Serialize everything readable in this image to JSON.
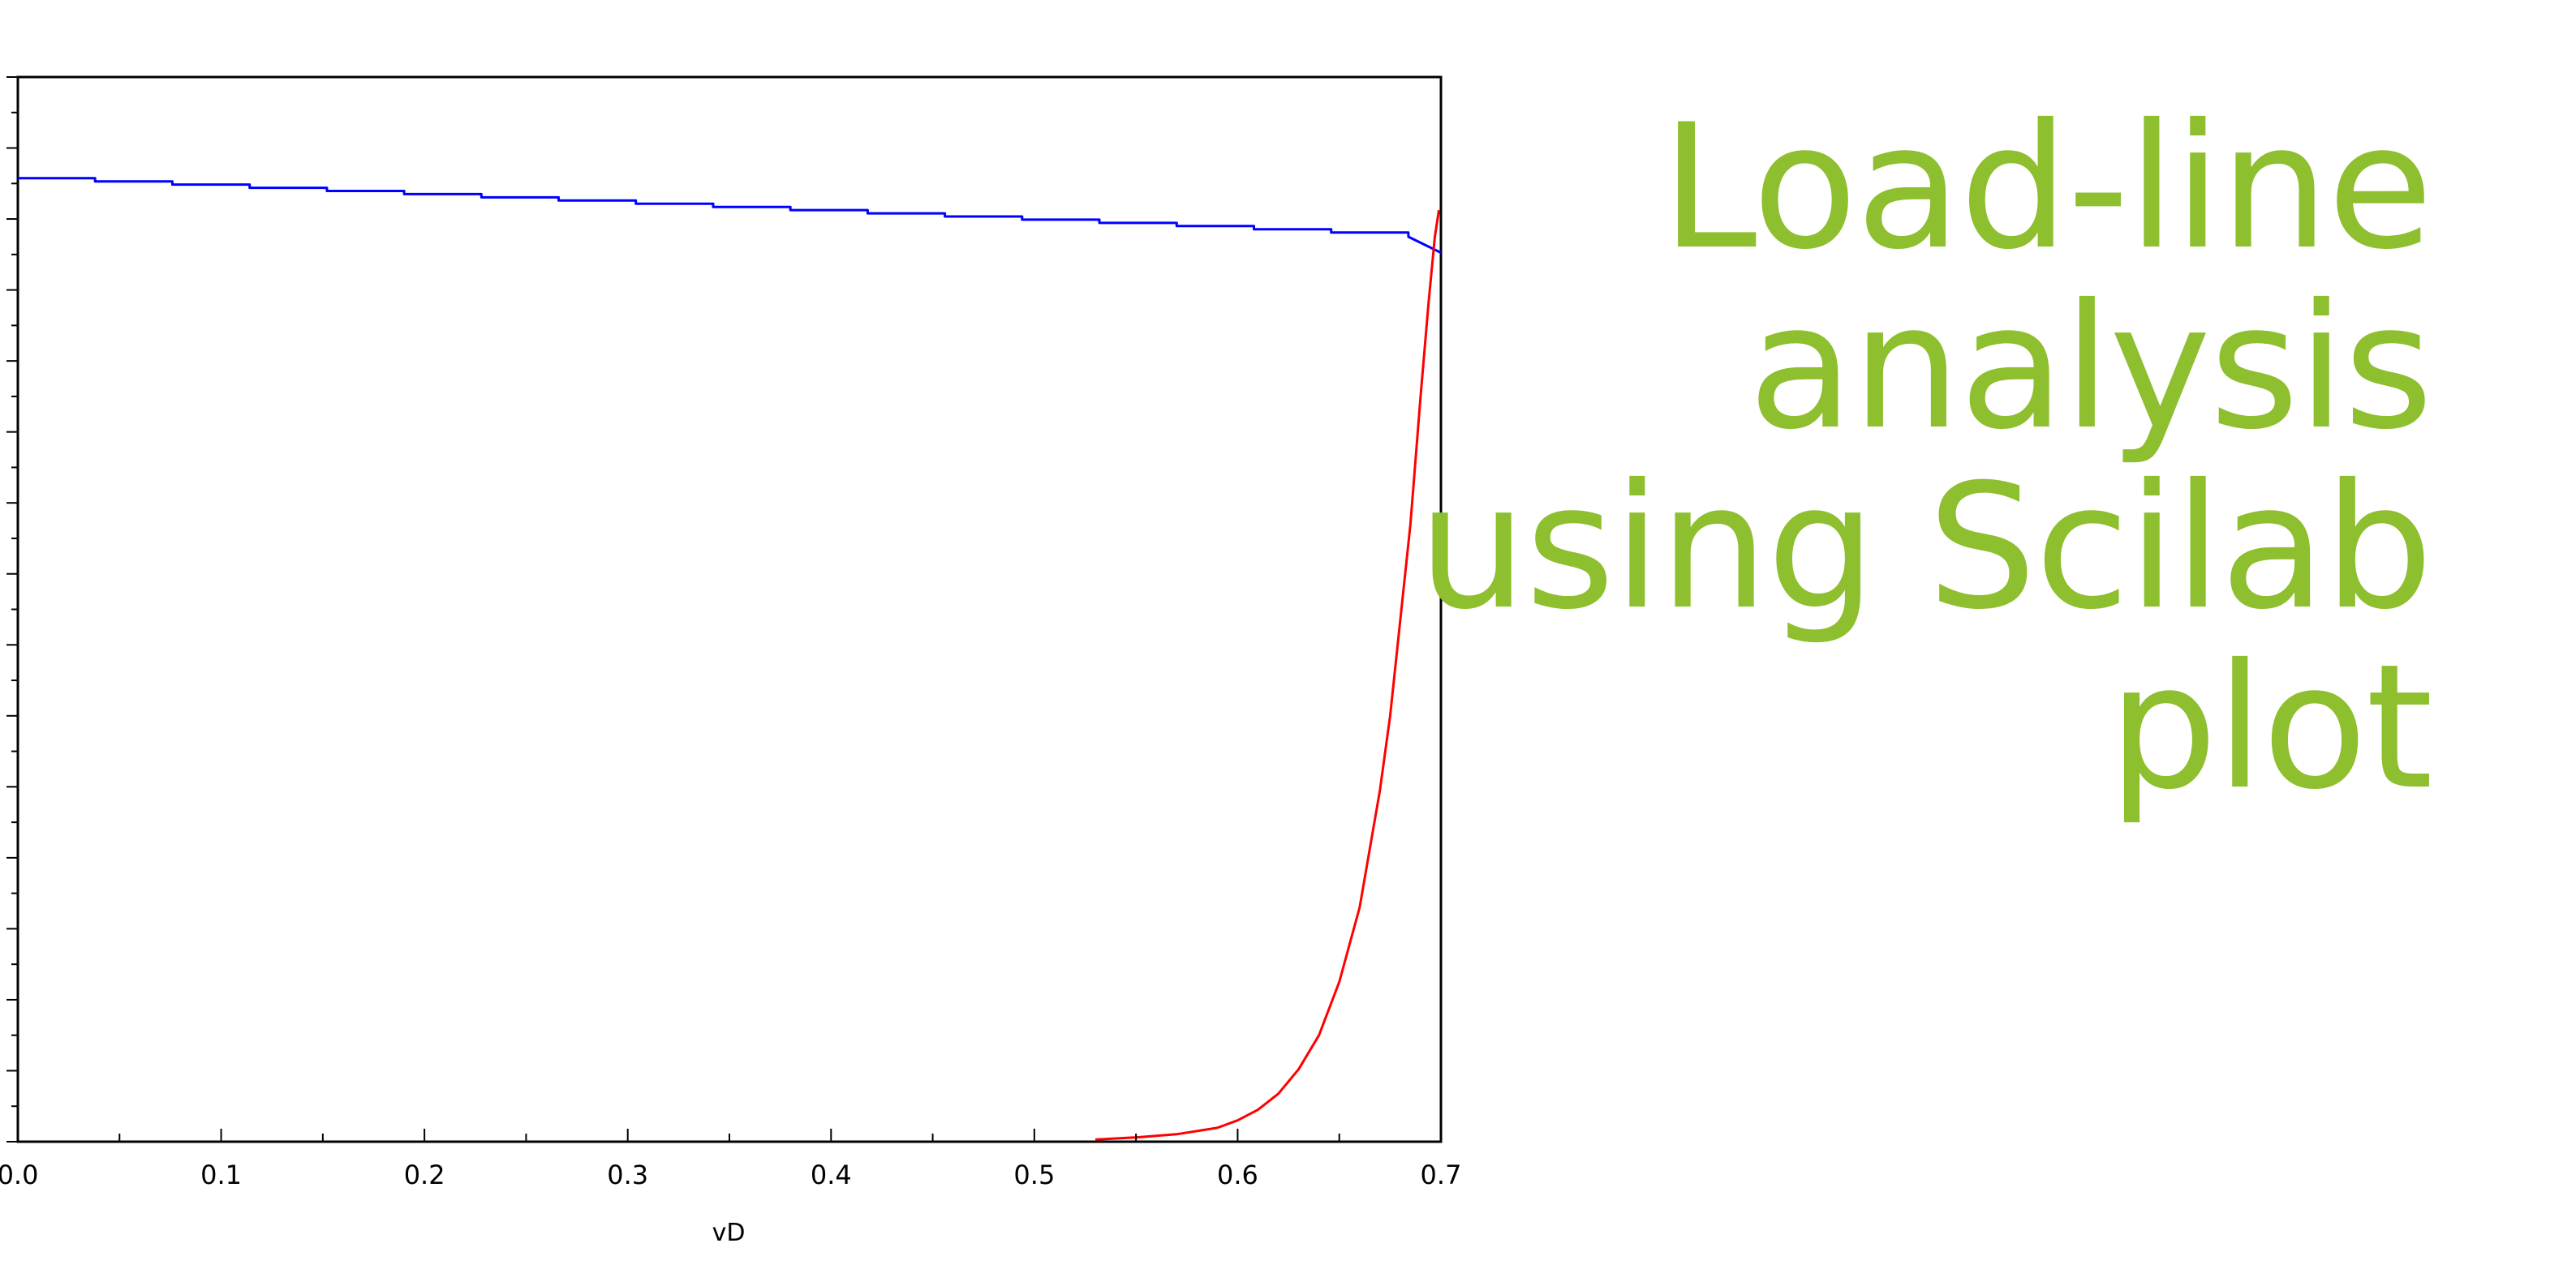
{
  "slide": {
    "title_lines": [
      "Load-line",
      "analysis",
      "using Scilab",
      "plot"
    ],
    "title_color": "#8dbf2e"
  },
  "chart_data": {
    "type": "line",
    "xlabel": "vD",
    "xlim": [
      0.0,
      0.7
    ],
    "ylim": [
      0,
      1.0
    ],
    "x_ticks": [
      {
        "value": 0.0,
        "label": "0.0"
      },
      {
        "value": 0.1,
        "label": "0.1"
      },
      {
        "value": 0.2,
        "label": "0.2"
      },
      {
        "value": 0.3,
        "label": "0.3"
      },
      {
        "value": 0.4,
        "label": "0.4"
      },
      {
        "value": 0.5,
        "label": "0.5"
      },
      {
        "value": 0.6,
        "label": "0.6"
      },
      {
        "value": 0.7,
        "label": "0.7"
      }
    ],
    "x_minor_per_major": 2,
    "y_tick_count": 31,
    "grid": false,
    "series": [
      {
        "color": "#0000ff",
        "style": "staircase",
        "x": [
          0.0,
          0.038,
          0.038,
          0.076,
          0.076,
          0.114,
          0.114,
          0.152,
          0.152,
          0.19,
          0.19,
          0.228,
          0.228,
          0.266,
          0.266,
          0.304,
          0.304,
          0.342,
          0.342,
          0.38,
          0.38,
          0.418,
          0.418,
          0.456,
          0.456,
          0.494,
          0.494,
          0.532,
          0.532,
          0.57,
          0.57,
          0.608,
          0.608,
          0.646,
          0.646,
          0.684,
          0.684,
          0.7
        ],
        "y": [
          0.905,
          0.905,
          0.902,
          0.902,
          0.899,
          0.899,
          0.896,
          0.896,
          0.893,
          0.893,
          0.89,
          0.89,
          0.887,
          0.887,
          0.884,
          0.884,
          0.881,
          0.881,
          0.878,
          0.878,
          0.875,
          0.875,
          0.872,
          0.872,
          0.869,
          0.869,
          0.866,
          0.866,
          0.863,
          0.863,
          0.86,
          0.86,
          0.857,
          0.857,
          0.854,
          0.854,
          0.85,
          0.835
        ]
      },
      {
        "color": "#ff0000",
        "style": "line",
        "x": [
          0.53,
          0.55,
          0.57,
          0.59,
          0.6,
          0.61,
          0.62,
          0.63,
          0.64,
          0.65,
          0.66,
          0.67,
          0.675,
          0.68,
          0.685,
          0.69,
          0.694,
          0.697,
          0.699
        ],
        "y": [
          0.002,
          0.004,
          0.007,
          0.013,
          0.02,
          0.03,
          0.045,
          0.068,
          0.1,
          0.15,
          0.22,
          0.33,
          0.4,
          0.49,
          0.58,
          0.7,
          0.79,
          0.85,
          0.875
        ]
      }
    ]
  }
}
